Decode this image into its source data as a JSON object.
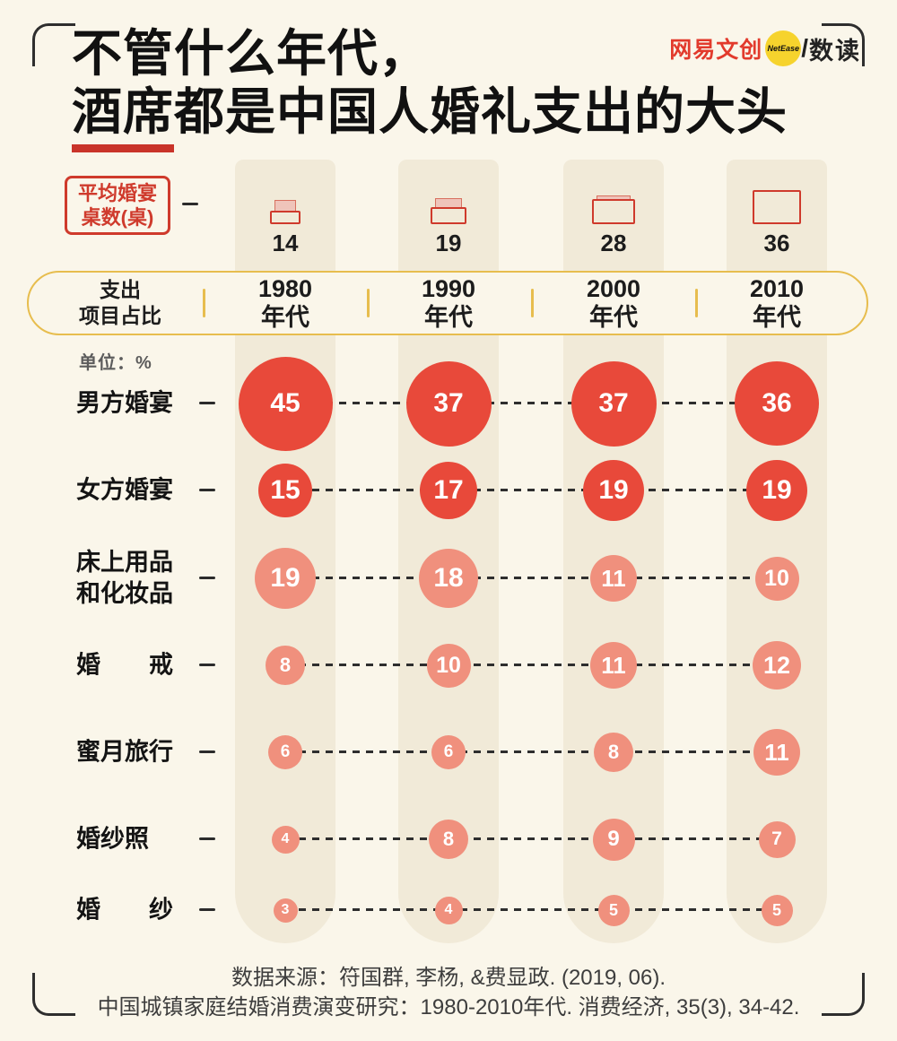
{
  "logo": {
    "brand": "网易文创",
    "badge": "NetEase",
    "divider": "/",
    "product": "数读"
  },
  "title": {
    "line1": "不管什么年代，",
    "line2_underlined": "酒席",
    "line2_rest": "都是中国人婚礼支出的大头"
  },
  "table_row": {
    "label_line1": "平均婚宴",
    "label_line2": "桌数(桌)"
  },
  "expense_header": {
    "label_line1": "支出",
    "label_line2": "项目占比"
  },
  "unit_label": "单位：%",
  "footer": {
    "line1": "数据来源：符国群, 李杨, &费显政. (2019, 06).",
    "line2": "中国城镇家庭结婚消费演变研究：1980-2010年代. 消费经济, 35(3), 34-42."
  },
  "icons": {
    "banquet_table": "red-outlined-table-rectangle",
    "netease_badge": "yellow-circle-badge"
  },
  "colors": {
    "background": "#faf6ea",
    "column_band": "#f1ead8",
    "bubble_strong": "#e8493a",
    "bubble_light": "#f0907d",
    "accent_red": "#cf3a2c",
    "accent_gold": "#e7bd4e",
    "underline_red": "#c9342a",
    "logo_yellow": "#f6d32d"
  },
  "chart_data": {
    "type": "bubble",
    "title": "不管什么年代，酒席都是中国人婚礼支出的大头",
    "subtitle_left_header": "支出项目占比",
    "unit": "%",
    "columns": [
      {
        "era": "1980",
        "suffix": "年代"
      },
      {
        "era": "1990",
        "suffix": "年代"
      },
      {
        "era": "2000",
        "suffix": "年代"
      },
      {
        "era": "2010",
        "suffix": "年代"
      }
    ],
    "avg_banquet_tables": {
      "label": "平均婚宴桌数(桌)",
      "values": [
        14,
        19,
        28,
        36
      ]
    },
    "series_rows": [
      {
        "label_lines": [
          "男方婚宴"
        ],
        "values": [
          45,
          37,
          37,
          36
        ],
        "color": "#e8493a"
      },
      {
        "label_lines": [
          "女方婚宴"
        ],
        "values": [
          15,
          17,
          19,
          19
        ],
        "color": "#e8493a"
      },
      {
        "label_lines": [
          "床上用品",
          "和化妆品"
        ],
        "values": [
          19,
          18,
          11,
          10
        ],
        "color": "#f0907d"
      },
      {
        "label_lines": [
          "婚　　戒"
        ],
        "values": [
          8,
          10,
          11,
          12
        ],
        "color": "#f0907d"
      },
      {
        "label_lines": [
          "蜜月旅行"
        ],
        "values": [
          6,
          6,
          8,
          11
        ],
        "color": "#f0907d"
      },
      {
        "label_lines": [
          "婚纱照"
        ],
        "values": [
          4,
          8,
          9,
          7
        ],
        "color": "#f0907d"
      },
      {
        "label_lines": [
          "婚　　纱"
        ],
        "values": [
          3,
          4,
          5,
          5
        ],
        "color": "#f0907d"
      }
    ],
    "legend_position": "none",
    "grid": "off",
    "source_lines": [
      "数据来源：符国群, 李杨, &费显政. (2019, 06).",
      "中国城镇家庭结婚消费演变研究：1980-2010年代. 消费经济, 35(3), 34-42."
    ]
  }
}
